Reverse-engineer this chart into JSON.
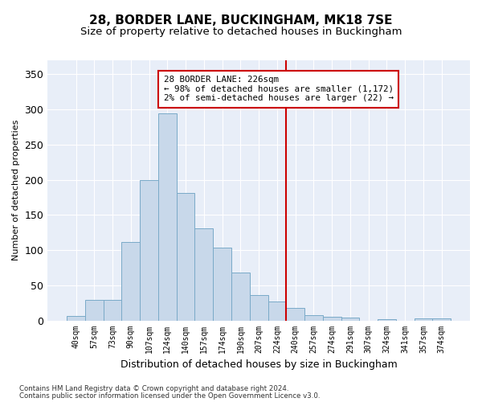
{
  "title": "28, BORDER LANE, BUCKINGHAM, MK18 7SE",
  "subtitle": "Size of property relative to detached houses in Buckingham",
  "xlabel": "Distribution of detached houses by size in Buckingham",
  "ylabel": "Number of detached properties",
  "categories": [
    "40sqm",
    "57sqm",
    "73sqm",
    "90sqm",
    "107sqm",
    "124sqm",
    "140sqm",
    "157sqm",
    "174sqm",
    "190sqm",
    "207sqm",
    "224sqm",
    "240sqm",
    "257sqm",
    "274sqm",
    "291sqm",
    "307sqm",
    "324sqm",
    "341sqm",
    "357sqm",
    "374sqm"
  ],
  "values": [
    6,
    29,
    29,
    111,
    200,
    295,
    181,
    131,
    103,
    68,
    36,
    27,
    18,
    8,
    5,
    4,
    0,
    2,
    0,
    3,
    3
  ],
  "bar_color": "#c8d8ea",
  "bar_edge_color": "#7aaac8",
  "vline_color": "#cc0000",
  "annotation_text": "28 BORDER LANE: 226sqm\n← 98% of detached houses are smaller (1,172)\n2% of semi-detached houses are larger (22) →",
  "annotation_box_color": "#cc0000",
  "ylim": [
    0,
    370
  ],
  "yticks": [
    0,
    50,
    100,
    150,
    200,
    250,
    300,
    350
  ],
  "footer1": "Contains HM Land Registry data © Crown copyright and database right 2024.",
  "footer2": "Contains public sector information licensed under the Open Government Licence v3.0.",
  "bg_color": "#e8eef8",
  "grid_color": "#ffffff",
  "title_fontsize": 11,
  "subtitle_fontsize": 9.5,
  "tick_fontsize": 7,
  "ylabel_fontsize": 8,
  "xlabel_fontsize": 9
}
